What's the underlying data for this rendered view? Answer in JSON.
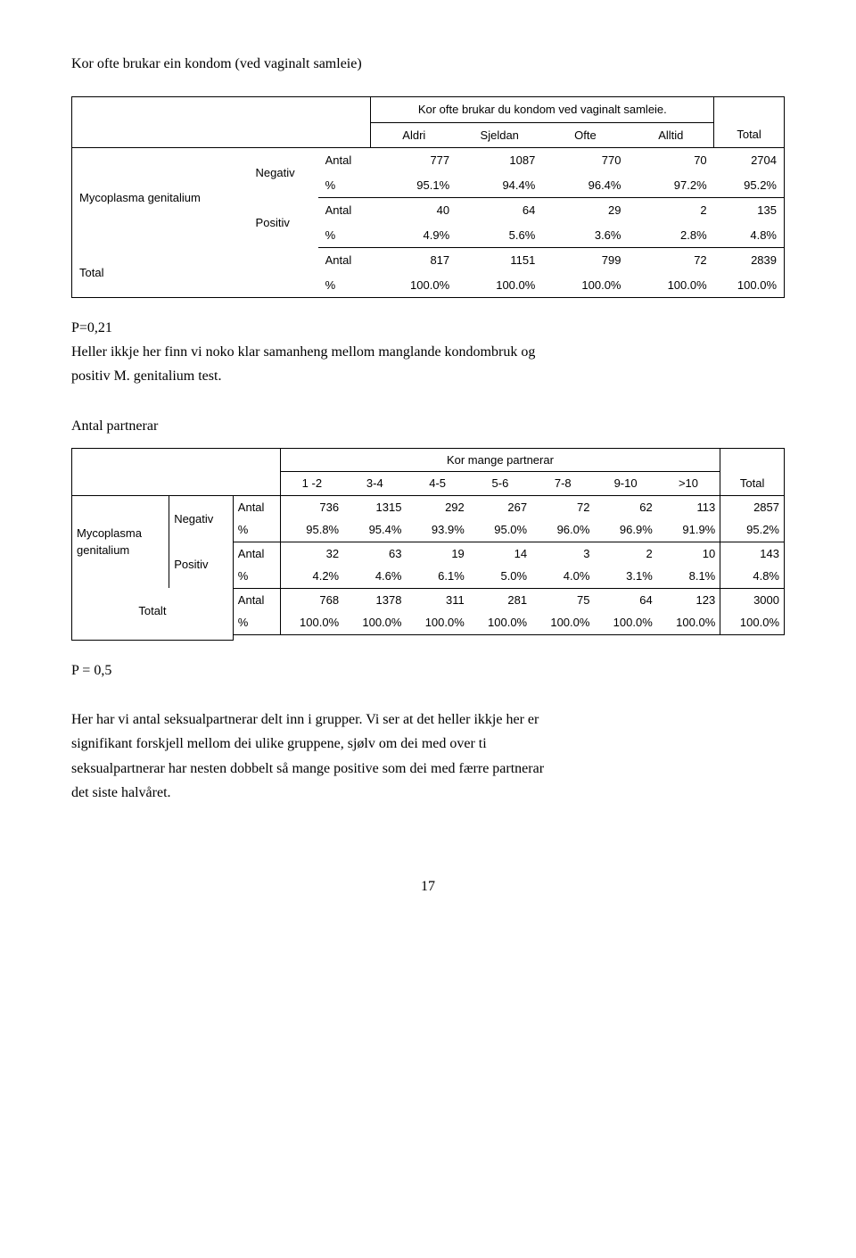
{
  "section_title": "Kor ofte brukar ein kondom (ved vaginalt samleie)",
  "table1": {
    "inner_title": "Kor ofte brukar du kondom ved vaginalt samleie.",
    "cols": [
      "Aldri",
      "Sjeldan",
      "Ofte",
      "Alltid"
    ],
    "total_col": "Total",
    "row_group_label": "Mycoplasma genitalium",
    "neg_label": "Negativ",
    "pos_label": "Positiv",
    "total_label": "Total",
    "antal_label": "Antal",
    "pct_label": "%",
    "neg_antal": [
      "777",
      "1087",
      "770",
      "70",
      "2704"
    ],
    "neg_pct": [
      "95.1%",
      "94.4%",
      "96.4%",
      "97.2%",
      "95.2%"
    ],
    "pos_antal": [
      "40",
      "64",
      "29",
      "2",
      "135"
    ],
    "pos_pct": [
      "4.9%",
      "5.6%",
      "3.6%",
      "2.8%",
      "4.8%"
    ],
    "tot_antal": [
      "817",
      "1151",
      "799",
      "72",
      "2839"
    ],
    "tot_pct": [
      "100.0%",
      "100.0%",
      "100.0%",
      "100.0%",
      "100.0%"
    ]
  },
  "para1_l1": "P=0,21",
  "para1_l2": "Heller ikkje her finn vi noko klar samanheng mellom manglande kondombruk og",
  "para1_l3": "positiv M. genitalium test.",
  "subhead": "Antal partnerar",
  "table2": {
    "inner_title": "Kor mange partnerar",
    "cols": [
      "1 -2",
      "3-4",
      "4-5",
      "5-6",
      "7-8",
      "9-10",
      ">10"
    ],
    "total_col": "Total",
    "row_group_label": "Mycoplasma\ngenitalium",
    "neg_label": "Negativ",
    "pos_label": "Positiv",
    "total_label": "Totalt",
    "antal_label": "Antal",
    "pct_label": "%",
    "neg_antal": [
      "736",
      "1315",
      "292",
      "267",
      "72",
      "62",
      "113",
      "2857"
    ],
    "neg_pct": [
      "95.8%",
      "95.4%",
      "93.9%",
      "95.0%",
      "96.0%",
      "96.9%",
      "91.9%",
      "95.2%"
    ],
    "pos_antal": [
      "32",
      "63",
      "19",
      "14",
      "3",
      "2",
      "10",
      "143"
    ],
    "pos_pct": [
      "4.2%",
      "4.6%",
      "6.1%",
      "5.0%",
      "4.0%",
      "3.1%",
      "8.1%",
      "4.8%"
    ],
    "tot_antal": [
      "768",
      "1378",
      "311",
      "281",
      "75",
      "64",
      "123",
      "3000"
    ],
    "tot_pct": [
      "100.0%",
      "100.0%",
      "100.0%",
      "100.0%",
      "100.0%",
      "100.0%",
      "100.0%",
      "100.0%"
    ]
  },
  "para2_p": "P = 0,5",
  "para2_l1": "Her har vi antal seksualpartnerar delt inn i grupper. Vi ser at det heller ikkje her er",
  "para2_l2": "signifikant forskjell mellom dei ulike gruppene, sjølv om dei med over ti",
  "para2_l3": "seksualpartnerar har nesten dobbelt så mange positive som dei med færre partnerar",
  "para2_l4": "det siste halvåret.",
  "page_number": "17"
}
